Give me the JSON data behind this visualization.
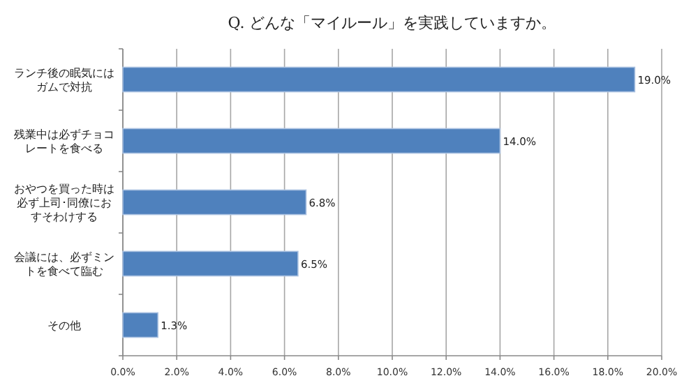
{
  "chart_data": {
    "type": "bar",
    "orientation": "horizontal",
    "title": "Q. どんな「マイルール」を実践していますか。",
    "categories": [
      "ランチ後の眠気にはガムで対抗",
      "残業中は必ずチョコレートを食べる",
      "おやつを買った時は必ず上司･同僚におすそわけする",
      "会議には、必ずミントを食べて臨む",
      "その他"
    ],
    "values": [
      19.0,
      14.0,
      6.8,
      6.5,
      1.3
    ],
    "value_labels": [
      "19.0%",
      "14.0%",
      "6.8%",
      "6.5%",
      "1.3%"
    ],
    "color": "#4f81bd",
    "xlim": [
      0,
      20
    ],
    "xticks": [
      {
        "value": 0,
        "label": "0.0%"
      },
      {
        "value": 2,
        "label": "2.0%"
      },
      {
        "value": 4,
        "label": "4.0%"
      },
      {
        "value": 6,
        "label": "6.0%"
      },
      {
        "value": 8,
        "label": "8.0%"
      },
      {
        "value": 10,
        "label": "10.0%"
      },
      {
        "value": 12,
        "label": "12.0%"
      },
      {
        "value": 14,
        "label": "14.0%"
      },
      {
        "value": 16,
        "label": "16.0%"
      },
      {
        "value": 18,
        "label": "18.0%"
      },
      {
        "value": 20,
        "label": "20.0%"
      }
    ],
    "grid": "x"
  }
}
